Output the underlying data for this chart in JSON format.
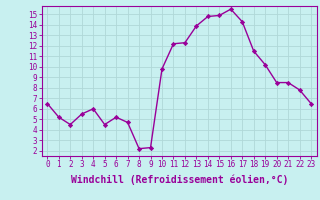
{
  "x": [
    0,
    1,
    2,
    3,
    4,
    5,
    6,
    7,
    8,
    9,
    10,
    11,
    12,
    13,
    14,
    15,
    16,
    17,
    18,
    19,
    20,
    21,
    22,
    23
  ],
  "y": [
    6.5,
    5.2,
    4.5,
    5.5,
    6.0,
    4.5,
    5.2,
    4.7,
    2.2,
    2.3,
    9.8,
    12.2,
    12.3,
    13.9,
    14.8,
    14.9,
    15.5,
    14.3,
    11.5,
    10.2,
    8.5,
    8.5,
    7.8,
    6.5
  ],
  "color": "#990099",
  "bg_color": "#c8f0f0",
  "grid_color": "#b0d8d8",
  "xlabel": "Windchill (Refroidissement éolien,°C)",
  "xlim": [
    -0.5,
    23.5
  ],
  "ylim": [
    1.5,
    15.8
  ],
  "yticks": [
    2,
    3,
    4,
    5,
    6,
    7,
    8,
    9,
    10,
    11,
    12,
    13,
    14,
    15
  ],
  "xticks": [
    0,
    1,
    2,
    3,
    4,
    5,
    6,
    7,
    8,
    9,
    10,
    11,
    12,
    13,
    14,
    15,
    16,
    17,
    18,
    19,
    20,
    21,
    22,
    23
  ],
  "marker": "D",
  "markersize": 2.2,
  "linewidth": 1.0,
  "tick_fontsize": 5.5,
  "xlabel_fontsize": 7.0
}
